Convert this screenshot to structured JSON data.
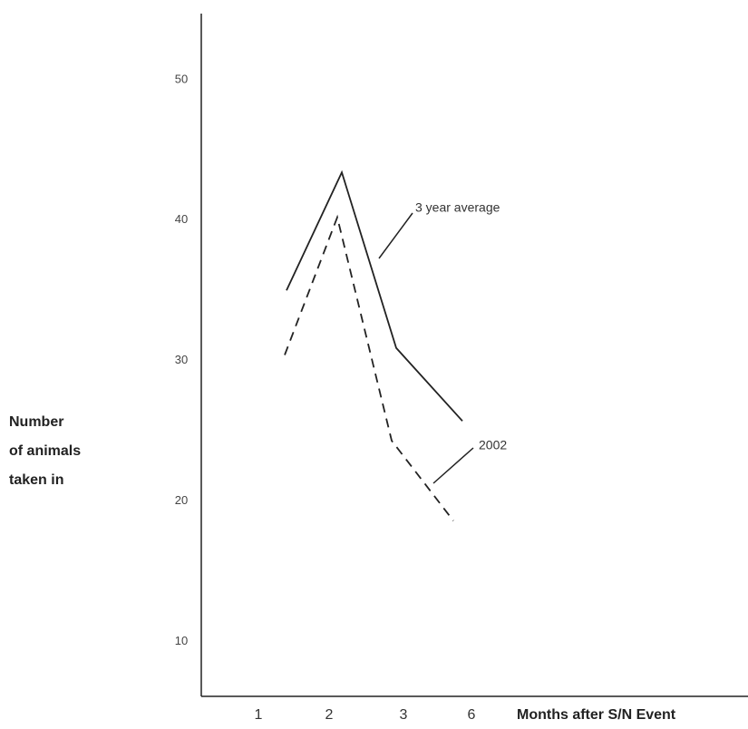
{
  "chart_data": {
    "type": "line",
    "ylabel": [
      "Number",
      "of animals",
      "taken in"
    ],
    "xlabel": "Months after S/N Event",
    "categories": [
      "1",
      "2",
      "3",
      "6"
    ],
    "series": [
      {
        "name": "3 year average",
        "color": "#222222",
        "dash": false,
        "values": [
          35.0,
          43.4,
          30.9,
          25.7
        ]
      },
      {
        "name": "2002",
        "color": "#222222",
        "dash": true,
        "values": [
          30.4,
          40.2,
          24.3,
          18.6
        ]
      }
    ],
    "ylim": [
      6.1,
      54.7
    ],
    "yticks": [
      10,
      20,
      30,
      40,
      50
    ]
  }
}
